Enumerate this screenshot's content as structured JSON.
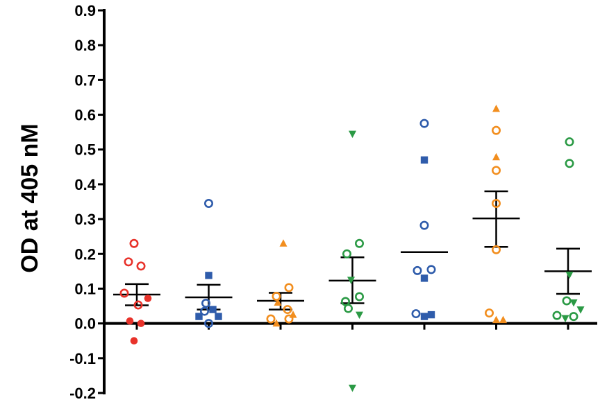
{
  "chart_data": {
    "type": "scatter",
    "title": "",
    "xlabel": "",
    "ylabel": "OD at 405 nM",
    "ylim": [
      -0.2,
      0.9
    ],
    "yticks": [
      "-0.2",
      "-0.1",
      "0.0",
      "0.1",
      "0.2",
      "0.3",
      "0.4",
      "0.5",
      "0.6",
      "0.7",
      "0.8",
      "0.9"
    ],
    "grid": false,
    "legend": "none",
    "groups": [
      {
        "color": "#e8322a",
        "mean": 0.083,
        "sem_low": 0.052,
        "sem_high": 0.113,
        "points": [
          {
            "y": 0.23,
            "marker": "circle-open",
            "dx": -0.2
          },
          {
            "y": 0.177,
            "marker": "circle-open",
            "dx": -0.6
          },
          {
            "y": 0.165,
            "marker": "circle-open",
            "dx": 0.3
          },
          {
            "y": 0.087,
            "marker": "circle-open",
            "dx": -0.9
          },
          {
            "y": 0.053,
            "marker": "circle-open",
            "dx": 0.1
          },
          {
            "y": 0.072,
            "marker": "circle-filled",
            "dx": 0.8
          },
          {
            "y": 0.007,
            "marker": "circle-filled",
            "dx": -0.5
          },
          {
            "y": 0.0,
            "marker": "circle-filled",
            "dx": 0.3
          },
          {
            "y": -0.05,
            "marker": "circle-filled",
            "dx": -0.2
          }
        ]
      },
      {
        "color": "#2f5cab",
        "mean": 0.075,
        "sem_low": 0.04,
        "sem_high": 0.111,
        "points": [
          {
            "y": 0.345,
            "marker": "circle-open",
            "dx": 0.0
          },
          {
            "y": 0.138,
            "marker": "square-filled",
            "dx": 0.0
          },
          {
            "y": 0.058,
            "marker": "circle-open",
            "dx": -0.2
          },
          {
            "y": 0.04,
            "marker": "square-filled",
            "dx": 0.3
          },
          {
            "y": 0.02,
            "marker": "square-filled",
            "dx": -0.7
          },
          {
            "y": 0.02,
            "marker": "square-filled",
            "dx": 0.7
          },
          {
            "y": 0.035,
            "marker": "circle-open",
            "dx": -0.3
          },
          {
            "y": 0.0,
            "marker": "circle-open",
            "dx": 0.0
          }
        ]
      },
      {
        "color": "#f28e1e",
        "mean": 0.065,
        "sem_low": 0.04,
        "sem_high": 0.088,
        "points": [
          {
            "y": 0.23,
            "marker": "triangle-up",
            "dx": 0.2
          },
          {
            "y": 0.103,
            "marker": "circle-open",
            "dx": 0.6
          },
          {
            "y": 0.078,
            "marker": "circle-open",
            "dx": -0.3
          },
          {
            "y": 0.04,
            "marker": "circle-open",
            "dx": 0.5
          },
          {
            "y": 0.06,
            "marker": "triangle-up",
            "dx": -0.2
          },
          {
            "y": 0.025,
            "marker": "triangle-up",
            "dx": 0.9
          },
          {
            "y": 0.013,
            "marker": "circle-open",
            "dx": -0.7
          },
          {
            "y": 0.013,
            "marker": "circle-open",
            "dx": 0.6
          },
          {
            "y": 0.0,
            "marker": "triangle-up",
            "dx": -0.3
          }
        ]
      },
      {
        "color": "#2b9a45",
        "mean": 0.123,
        "sem_low": 0.058,
        "sem_high": 0.19,
        "points": [
          {
            "y": 0.545,
            "marker": "triangle-down",
            "dx": 0.0
          },
          {
            "y": 0.23,
            "marker": "circle-open",
            "dx": 0.5
          },
          {
            "y": 0.2,
            "marker": "circle-open",
            "dx": -0.4
          },
          {
            "y": 0.125,
            "marker": "triangle-down",
            "dx": -0.1
          },
          {
            "y": 0.077,
            "marker": "circle-open",
            "dx": 0.5
          },
          {
            "y": 0.063,
            "marker": "circle-open",
            "dx": -0.5
          },
          {
            "y": 0.043,
            "marker": "circle-open",
            "dx": -0.3
          },
          {
            "y": 0.025,
            "marker": "triangle-down",
            "dx": 0.5
          },
          {
            "y": -0.185,
            "marker": "triangle-down",
            "dx": 0.0
          }
        ]
      },
      {
        "color": "#2f5cab",
        "mean": 0.205,
        "sem_low": null,
        "sem_high": null,
        "points": [
          {
            "y": 0.575,
            "marker": "circle-open",
            "dx": 0.0
          },
          {
            "y": 0.47,
            "marker": "square-filled",
            "dx": 0.0
          },
          {
            "y": 0.282,
            "marker": "circle-open",
            "dx": 0.0
          },
          {
            "y": 0.155,
            "marker": "circle-open",
            "dx": 0.5
          },
          {
            "y": 0.152,
            "marker": "circle-open",
            "dx": -0.5
          },
          {
            "y": 0.13,
            "marker": "square-filled",
            "dx": 0.0
          },
          {
            "y": 0.028,
            "marker": "circle-open",
            "dx": -0.6
          },
          {
            "y": 0.02,
            "marker": "square-filled",
            "dx": 0.0
          },
          {
            "y": 0.025,
            "marker": "square-filled",
            "dx": 0.5
          }
        ]
      },
      {
        "color": "#f28e1e",
        "mean": 0.302,
        "sem_low": 0.22,
        "sem_high": 0.38,
        "points": [
          {
            "y": 0.617,
            "marker": "triangle-up",
            "dx": 0.0
          },
          {
            "y": 0.555,
            "marker": "circle-open",
            "dx": 0.0
          },
          {
            "y": 0.478,
            "marker": "triangle-up",
            "dx": 0.0
          },
          {
            "y": 0.44,
            "marker": "circle-open",
            "dx": 0.0
          },
          {
            "y": 0.345,
            "marker": "circle-open",
            "dx": 0.0
          },
          {
            "y": 0.212,
            "marker": "circle-open",
            "dx": 0.0
          },
          {
            "y": 0.03,
            "marker": "circle-open",
            "dx": -0.5
          },
          {
            "y": 0.01,
            "marker": "triangle-up",
            "dx": 0.0
          },
          {
            "y": 0.01,
            "marker": "triangle-up",
            "dx": 0.5
          }
        ]
      },
      {
        "color": "#2b9a45",
        "mean": 0.15,
        "sem_low": 0.085,
        "sem_high": 0.215,
        "points": [
          {
            "y": 0.522,
            "marker": "circle-open",
            "dx": 0.1
          },
          {
            "y": 0.46,
            "marker": "circle-open",
            "dx": 0.1
          },
          {
            "y": 0.14,
            "marker": "triangle-down",
            "dx": 0.1
          },
          {
            "y": 0.065,
            "marker": "circle-open",
            "dx": -0.1
          },
          {
            "y": 0.04,
            "marker": "triangle-down",
            "dx": 0.9
          },
          {
            "y": 0.06,
            "marker": "triangle-down",
            "dx": 0.4
          },
          {
            "y": 0.023,
            "marker": "circle-open",
            "dx": -0.8
          },
          {
            "y": 0.02,
            "marker": "circle-open",
            "dx": 0.4
          },
          {
            "y": 0.015,
            "marker": "triangle-down",
            "dx": -0.2
          }
        ]
      }
    ]
  }
}
